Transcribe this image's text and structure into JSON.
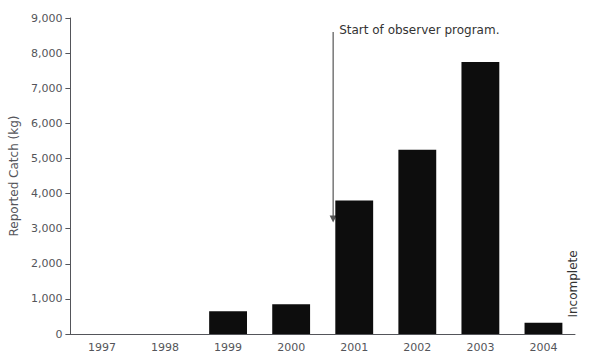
{
  "chart_data": {
    "type": "bar",
    "categories": [
      "1997",
      "1998",
      "1999",
      "2000",
      "2001",
      "2002",
      "2003",
      "2004"
    ],
    "values": [
      0,
      0,
      650,
      850,
      3800,
      5250,
      7750,
      320
    ],
    "color": "#0d0d0d",
    "ylabel": "Reported Catch (kg)",
    "ylim": [
      0,
      9000
    ],
    "yticks": [
      0,
      1000,
      2000,
      3000,
      4000,
      5000,
      6000,
      7000,
      8000,
      9000
    ],
    "grid": false,
    "annotations": [
      {
        "text": "Start of observer program.",
        "x": "2001"
      },
      {
        "text": "Incomplete",
        "x": "2004"
      }
    ]
  }
}
